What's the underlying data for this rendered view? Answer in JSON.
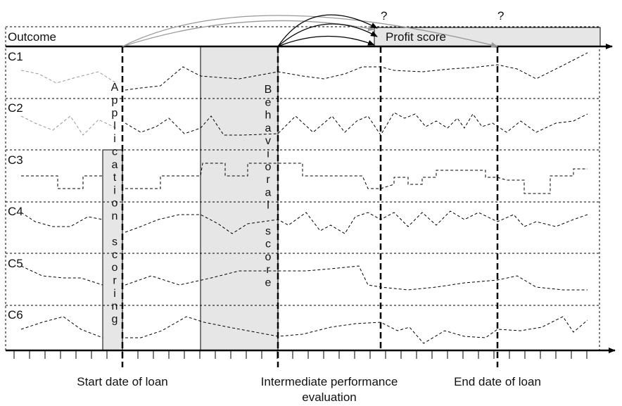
{
  "outcome_label": "Outcome",
  "profit_score_label": "Profit score",
  "question_marks": [
    "?",
    "?"
  ],
  "customers": [
    "C1",
    "C2",
    "C3",
    "C4",
    "C5",
    "C6"
  ],
  "application_scoring": "Application scoring",
  "behavioral_score": "Behavioral score",
  "time_labels": {
    "start": "Start date of loan",
    "intermediate_line1": "Intermediate performance",
    "intermediate_line2": "evaluation",
    "end": "End date of loan"
  },
  "colors": {
    "shade": "#e6e6e6",
    "line": "#000000",
    "arrow_gray": "#999999"
  }
}
